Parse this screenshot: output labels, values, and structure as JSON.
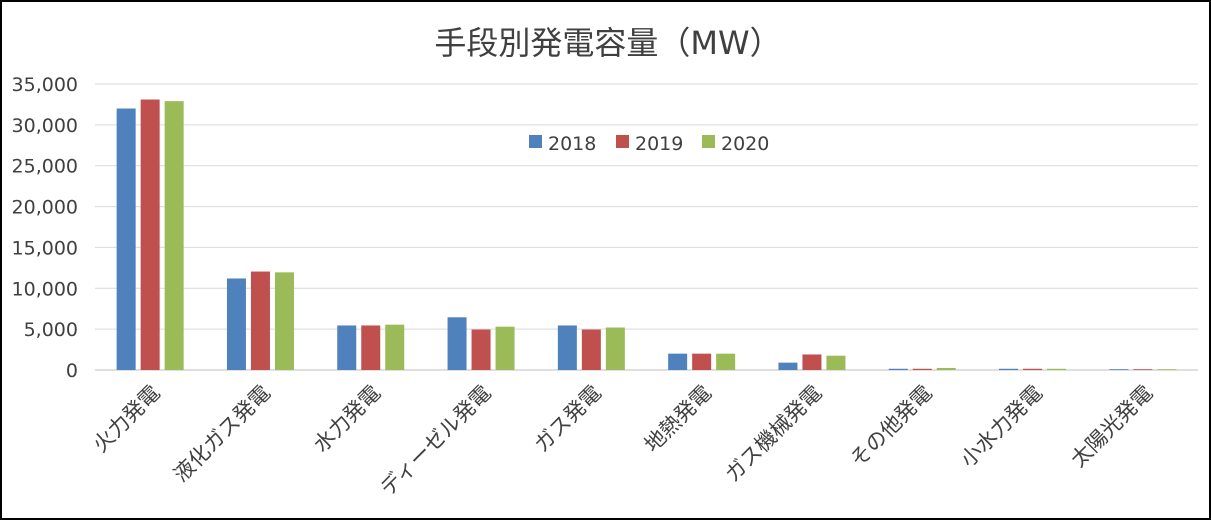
{
  "chart_data": {
    "type": "bar",
    "title": "手段別発電容量（MW）",
    "categories": [
      "火力発電",
      "液化ガス発電",
      "水力発電",
      "ディーゼル発電",
      "ガス発電",
      "地熱発電",
      "ガス機械発電",
      "その他発電",
      "小水力発電",
      "太陽光発電"
    ],
    "series": [
      {
        "name": "2018",
        "color": "#4f81bd",
        "values": [
          32000,
          11200,
          5450,
          6450,
          5450,
          2000,
          900,
          150,
          150,
          100
        ]
      },
      {
        "name": "2019",
        "color": "#c0504d",
        "values": [
          33100,
          12050,
          5450,
          4950,
          4950,
          2000,
          1900,
          150,
          150,
          100
        ]
      },
      {
        "name": "2020",
        "color": "#9bbb59",
        "values": [
          32900,
          11950,
          5550,
          5300,
          5200,
          2000,
          1750,
          250,
          150,
          100
        ]
      }
    ],
    "yticks": [
      "0",
      "5,000",
      "10,000",
      "15,000",
      "20,000",
      "25,000",
      "30,000",
      "35,000"
    ],
    "ylim": [
      0,
      35000
    ],
    "grid": true,
    "legend_position": "top-center"
  }
}
